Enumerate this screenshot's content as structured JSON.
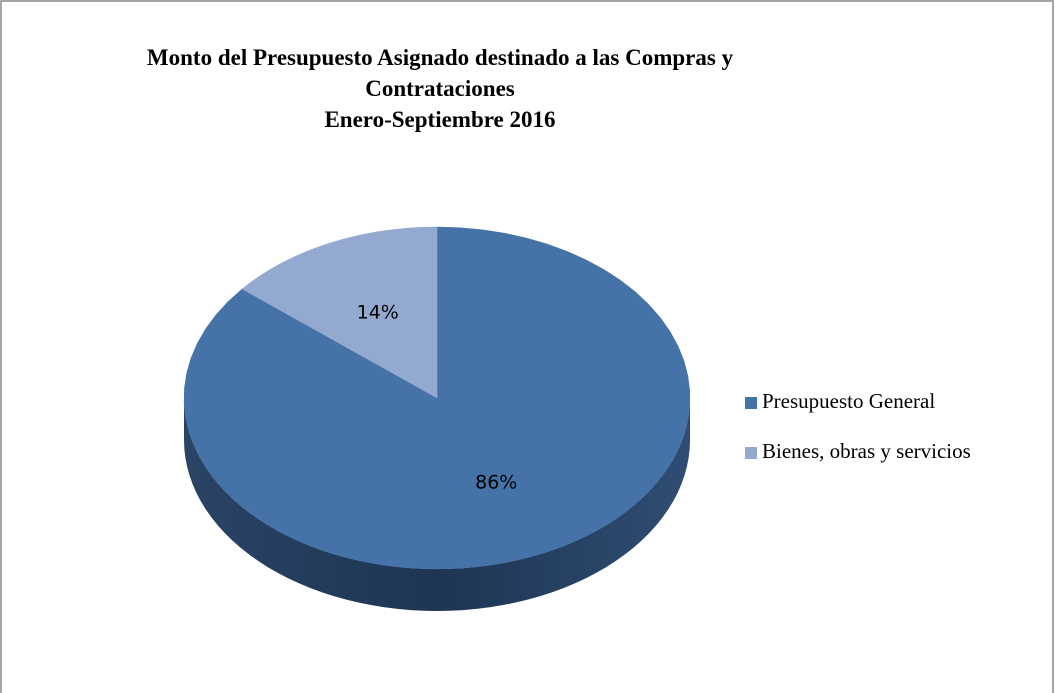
{
  "chart_data": {
    "type": "pie",
    "title": "Monto del Presupuesto Asignado destinado a las Compras y Contrataciones",
    "subtitle": "Enero-Septiembre 2016",
    "categories": [
      "Presupuesto General",
      "Bienes, obras y servicios"
    ],
    "values": [
      86,
      14
    ],
    "value_labels": [
      "86%",
      "14%"
    ],
    "colors": [
      "#4572a7",
      "#93a9cf"
    ],
    "legend": "right"
  }
}
